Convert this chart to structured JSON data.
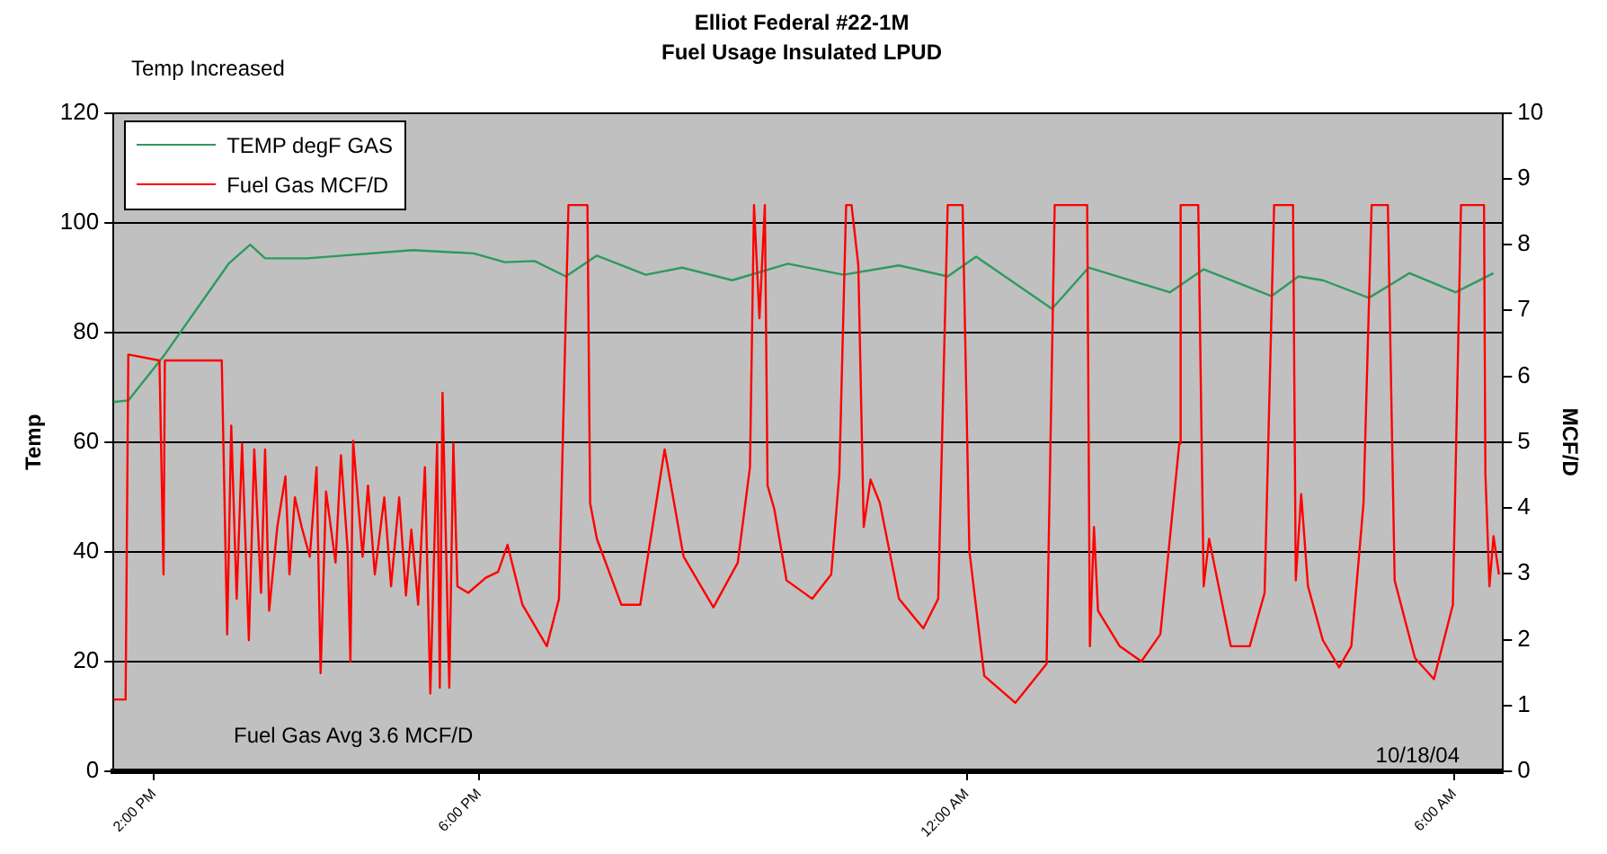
{
  "chart_data": {
    "type": "line",
    "title": "Elliot Federal #22-1M",
    "subtitle": "Fuel Usage Insulated LPUD",
    "ylabel": "Temp",
    "y2label": "MCF/D",
    "annotations": [
      "Temp Increased",
      "Fuel Gas Avg 3.6 MCF/D",
      "10/18/04"
    ],
    "xlim": [
      "--10-17T13:30",
      "--10-18T06:36"
    ],
    "xticks": [
      {
        "value": "--10-17T14:00",
        "label": "2:00 PM"
      },
      {
        "value": "--10-17T18:00",
        "label": "6:00 PM"
      },
      {
        "value": "--10-18T00:00",
        "label": "12:00 AM"
      },
      {
        "value": "--10-18T06:00",
        "label": "6:00 AM"
      }
    ],
    "ylim": [
      0,
      120
    ],
    "yticks": [
      0,
      20,
      40,
      60,
      80,
      100,
      120
    ],
    "y2lim": [
      0,
      10
    ],
    "y2ticks": [
      0,
      1,
      2,
      3,
      4,
      5,
      6,
      7,
      8,
      9,
      10
    ],
    "grid": "y",
    "legend": "top left",
    "marker": "none",
    "line_style": "solid",
    "series": [
      {
        "name": "TEMP degF GAS",
        "color": "#2e9a5e",
        "x": [
          "--10-17T13:30",
          "--10-17T13:41",
          "--10-17T14:08",
          "--10-17T14:55",
          "--10-17T15:11",
          "--10-17T15:22",
          "--10-17T15:53",
          "--10-17T17:11",
          "--10-17T17:56",
          "--10-17T18:19",
          "--10-17T18:41",
          "--10-17T19:04",
          "--10-17T19:27",
          "--10-17T20:03",
          "--10-17T20:30",
          "--10-17T21:07",
          "--10-17T21:48",
          "--10-17T22:29",
          "--10-17T23:10",
          "--10-17T23:46",
          "--10-18T00:07",
          "--10-18T01:03",
          "--10-18T01:30",
          "--10-18T02:30",
          "--10-18T02:55",
          "--10-18T03:45",
          "--10-18T04:05",
          "--10-18T04:23",
          "--10-18T04:57",
          "--10-18T05:27",
          "--10-18T06:01",
          "--10-18T06:29"
        ],
        "values": [
          67.3,
          67.6,
          76,
          92.5,
          96,
          93.5,
          93.5,
          95,
          94.4,
          92.8,
          93,
          90.2,
          94,
          90.5,
          91.8,
          89.5,
          92.5,
          90.5,
          92.2,
          90.2,
          93.8,
          84.3,
          91.8,
          87.3,
          91.5,
          86.6,
          90.2,
          89.5,
          86.3,
          90.8,
          87.3,
          90.8
        ]
      },
      {
        "name": "Fuel Gas MCF/D",
        "color": "#ff0000",
        "axis": "y2",
        "x": [
          "--10-17T13:30",
          "--10-17T13:39",
          "--10-17T13:41",
          "--10-17T14:04",
          "--10-17T14:07",
          "--10-17T14:08",
          "--10-17T14:50",
          "--10-17T14:54",
          "--10-17T14:57",
          "--10-17T15:01",
          "--10-17T15:05",
          "--10-17T15:10",
          "--10-17T15:14",
          "--10-17T15:19",
          "--10-17T15:22",
          "--10-17T15:25",
          "--10-17T15:31",
          "--10-17T15:37",
          "--10-17T15:40",
          "--10-17T15:44",
          "--10-17T15:49",
          "--10-17T15:55",
          "--10-17T16:00",
          "--10-17T16:03",
          "--10-17T16:07",
          "--10-17T16:14",
          "--10-17T16:18",
          "--10-17T16:23",
          "--10-17T16:25",
          "--10-17T16:27",
          "--10-17T16:34",
          "--10-17T16:38",
          "--10-17T16:43",
          "--10-17T16:50",
          "--10-17T16:55",
          "--10-17T17:01",
          "--10-17T17:06",
          "--10-17T17:10",
          "--10-17T17:15",
          "--10-17T17:20",
          "--10-17T17:24",
          "--10-17T17:29",
          "--10-17T17:31",
          "--10-17T17:33",
          "--10-17T17:38",
          "--10-17T17:41",
          "--10-17T17:44",
          "--10-17T17:52",
          "--10-17T18:05",
          "--10-17T18:14",
          "--10-17T18:21",
          "--10-17T18:32",
          "--10-17T18:50",
          "--10-17T18:59",
          "--10-17T19:06",
          "--10-17T19:20",
          "--10-17T19:22",
          "--10-17T19:27",
          "--10-17T19:45",
          "--10-17T19:59",
          "--10-17T20:17",
          "--10-17T20:31",
          "--10-17T20:53",
          "--10-17T21:11",
          "--10-17T21:20",
          "--10-17T21:23",
          "--10-17T21:27",
          "--10-17T21:31",
          "--10-17T21:33",
          "--10-17T21:38",
          "--10-17T21:47",
          "--10-17T22:06",
          "--10-17T22:20",
          "--10-17T22:26",
          "--10-17T22:31",
          "--10-17T22:35",
          "--10-17T22:40",
          "--10-17T22:44",
          "--10-17T22:49",
          "--10-17T22:56",
          "--10-17T23:10",
          "--10-17T23:28",
          "--10-17T23:39",
          "--10-17T23:46",
          "--10-17T23:57",
          "--10-18T00:02",
          "--10-18T00:13",
          "--10-18T00:36",
          "--10-18T00:59",
          "--10-18T01:05",
          "--10-18T01:29",
          "--10-18T01:31",
          "--10-18T01:34",
          "--10-18T01:37",
          "--10-18T01:53",
          "--10-18T02:09",
          "--10-18T02:23",
          "--10-18T02:37",
          "--10-18T02:38",
          "--10-18T02:51",
          "--10-18T02:55",
          "--10-18T02:59",
          "--10-18T03:15",
          "--10-18T03:29",
          "--10-18T03:40",
          "--10-18T03:47",
          "--10-18T04:01",
          "--10-18T04:03",
          "--10-18T04:07",
          "--10-18T04:12",
          "--10-18T04:23",
          "--10-18T04:35",
          "--10-18T04:44",
          "--10-18T04:53",
          "--10-18T04:59",
          "--10-18T05:11",
          "--10-18T05:16",
          "--10-18T05:31",
          "--10-18T05:45",
          "--10-18T05:59",
          "--10-18T06:05",
          "--10-18T06:22",
          "--10-18T06:23",
          "--10-18T06:26",
          "--10-18T06:29",
          "--10-18T06:33"
        ],
        "values": [
          1.09,
          1.09,
          6.33,
          6.24,
          2.99,
          6.24,
          6.24,
          2.08,
          5.25,
          2.62,
          4.98,
          1.99,
          4.89,
          2.71,
          4.89,
          2.44,
          3.71,
          4.48,
          2.99,
          4.16,
          3.71,
          3.26,
          4.62,
          1.49,
          4.25,
          3.17,
          4.8,
          3.35,
          1.67,
          5.02,
          3.26,
          4.34,
          2.99,
          4.16,
          2.81,
          4.16,
          2.67,
          3.67,
          2.53,
          4.62,
          1.18,
          4.98,
          1.27,
          5.75,
          1.27,
          4.98,
          2.81,
          2.71,
          2.94,
          3.03,
          3.44,
          2.53,
          1.9,
          2.62,
          8.6,
          8.6,
          4.07,
          3.53,
          2.53,
          2.53,
          4.89,
          3.26,
          2.49,
          3.17,
          4.62,
          8.6,
          6.88,
          8.6,
          4.34,
          3.98,
          2.9,
          2.62,
          2.99,
          4.52,
          8.6,
          8.6,
          7.69,
          3.71,
          4.43,
          4.07,
          2.62,
          2.17,
          2.62,
          8.6,
          8.6,
          3.35,
          1.45,
          1.04,
          1.63,
          8.6,
          8.6,
          1.9,
          3.71,
          2.44,
          1.9,
          1.67,
          2.08,
          4.98,
          8.6,
          8.6,
          2.81,
          3.53,
          1.9,
          1.9,
          2.71,
          8.6,
          8.6,
          2.9,
          4.21,
          2.81,
          1.99,
          1.58,
          1.9,
          4.07,
          8.6,
          8.6,
          2.9,
          1.72,
          1.4,
          2.53,
          8.6,
          8.6,
          4.52,
          2.81,
          3.57,
          2.99
        ]
      }
    ]
  }
}
